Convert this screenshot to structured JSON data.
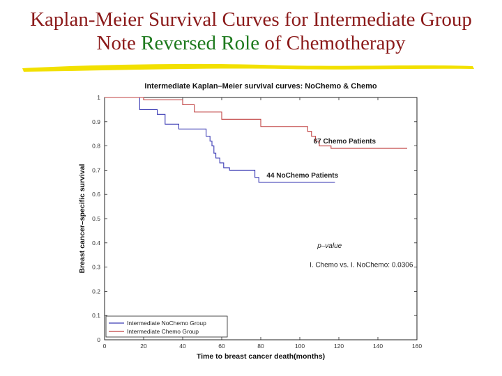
{
  "slide": {
    "title_line1": "Kaplan-Meier Survival Curves for Intermediate Group",
    "title_line2_note": "Note",
    "title_line2_reversed": "Reversed Role",
    "title_line2_rest": "of Chemotherapy",
    "underline_color": "#f2e000"
  },
  "chart_data": {
    "type": "line",
    "title": "Intermediate Kaplan–Meier survival curves: NoChemo & Chemo",
    "xlabel": "Time to breast cancer death(months)",
    "ylabel": "Breast cancer–specific survival",
    "xlim": [
      0,
      160
    ],
    "ylim": [
      0,
      1
    ],
    "xticks": [
      0,
      20,
      40,
      60,
      80,
      100,
      120,
      140,
      160
    ],
    "yticks": [
      0,
      0.1,
      0.2,
      0.3,
      0.4,
      0.5,
      0.6,
      0.7,
      0.8,
      0.9,
      1
    ],
    "grid": false,
    "series": [
      {
        "name": "Intermediate NoChemo Group",
        "color": "#3a3ab4",
        "step": true,
        "x": [
          0,
          15,
          18,
          27,
          31,
          38,
          52,
          54,
          55,
          56,
          57,
          59,
          61,
          64,
          70,
          71,
          75,
          77,
          79,
          86,
          98,
          118
        ],
        "y": [
          1.0,
          1.0,
          0.95,
          0.93,
          0.89,
          0.87,
          0.84,
          0.82,
          0.8,
          0.77,
          0.75,
          0.73,
          0.71,
          0.7,
          0.7,
          0.7,
          0.7,
          0.67,
          0.65,
          0.65,
          0.65,
          0.65
        ]
      },
      {
        "name": "Intermediate Chemo Group",
        "color": "#c04040",
        "step": true,
        "x": [
          0,
          20,
          40,
          46,
          56,
          60,
          70,
          80,
          100,
          102,
          104,
          106,
          108,
          110,
          114,
          116,
          120,
          140,
          155
        ],
        "y": [
          1.0,
          0.99,
          0.97,
          0.94,
          0.94,
          0.91,
          0.91,
          0.88,
          0.88,
          0.88,
          0.86,
          0.84,
          0.82,
          0.8,
          0.8,
          0.79,
          0.79,
          0.79,
          0.79
        ]
      }
    ],
    "annotations": [
      {
        "text": "67 Chemo Patients",
        "x": 107,
        "y": 0.81
      },
      {
        "text": "44 NoChemo Patients",
        "x": 83,
        "y": 0.67
      },
      {
        "text": "p–value",
        "x": 109,
        "y": 0.38
      },
      {
        "text": "I. Chemo vs. I. NoChemo: 0.0306",
        "x": 105,
        "y": 0.3
      }
    ],
    "legend": {
      "placement": "bottom-left",
      "entries": [
        "Intermediate NoChemo Group",
        "Intermediate Chemo Group"
      ]
    }
  }
}
